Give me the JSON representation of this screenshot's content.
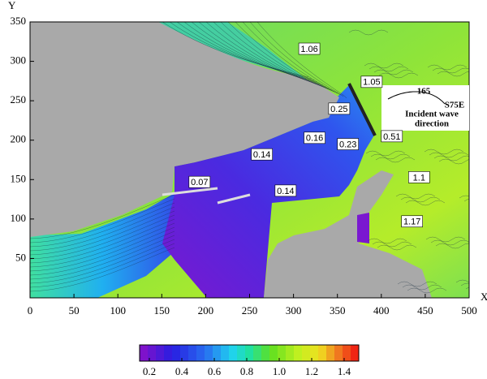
{
  "chart_data": {
    "type": "contour",
    "xlabel": "X",
    "ylabel": "Y",
    "xlim": [
      0,
      500
    ],
    "ylim": [
      0,
      350
    ],
    "xticks": [
      0,
      50,
      100,
      150,
      200,
      250,
      300,
      350,
      400,
      450,
      500
    ],
    "yticks": [
      50,
      100,
      150,
      200,
      250,
      300,
      350
    ],
    "colorbar": {
      "lim": [
        0.14,
        1.49
      ],
      "ticks": [
        0.2,
        0.4,
        0.6,
        0.8,
        {
          "value": 1,
          "label": "1.0"
        },
        1.2,
        1.4
      ]
    },
    "annotations": [
      {
        "value": 1.06,
        "x": 318,
        "y": 316
      },
      {
        "value": 1.05,
        "x": 389,
        "y": 274
      },
      {
        "value": 0.25,
        "x": 352,
        "y": 240
      },
      {
        "value": 0.16,
        "x": 324,
        "y": 203
      },
      {
        "value": 0.23,
        "x": 362,
        "y": 195
      },
      {
        "value": 0.51,
        "x": 412,
        "y": 205
      },
      {
        "value": 0.14,
        "x": 264,
        "y": 182
      },
      {
        "value": 0.07,
        "x": 193,
        "y": 147
      },
      {
        "value": 0.14,
        "x": 291,
        "y": 136
      },
      {
        "value": 1.1,
        "x": 443,
        "y": 153
      },
      {
        "value": 1.17,
        "x": 435,
        "y": 97
      }
    ],
    "wave_note": {
      "angle": "165",
      "direction": "S75E",
      "label_lines": [
        "Incident wave",
        "direction"
      ]
    }
  }
}
